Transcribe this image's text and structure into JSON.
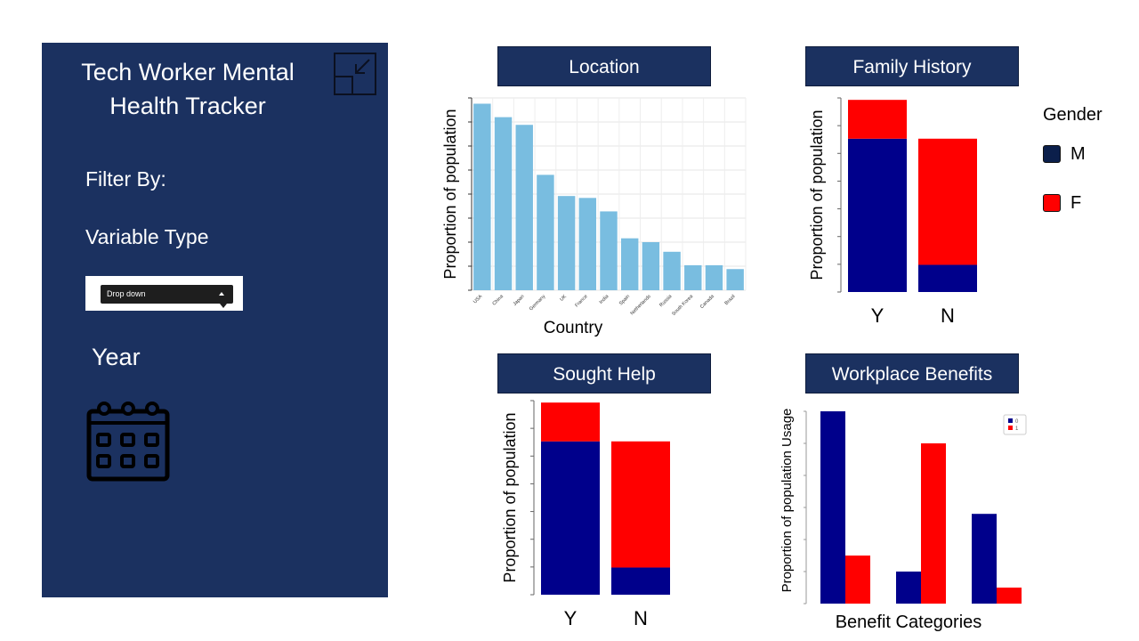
{
  "sidebar": {
    "title": "Tech Worker Mental Health Tracker",
    "filter_label": "Filter By:",
    "variable_type_label": "Variable Type",
    "dropdown_value": "Drop down",
    "year_label": "Year",
    "collapse_icon": "collapse-icon",
    "calendar_icon": "calendar-icon"
  },
  "colors": {
    "sidebar_bg": "#1b3160",
    "male": "#00008b",
    "female": "#ff0000",
    "location_bar": "#79bde0"
  },
  "legend": {
    "title": "Gender",
    "items": [
      {
        "label": "M",
        "color": "#0b1f4b"
      },
      {
        "label": "F",
        "color": "#ff0000"
      }
    ]
  },
  "chart_data": [
    {
      "type": "bar",
      "title": "Location",
      "xlabel": "Country",
      "ylabel": "Proportion of population",
      "categories": [
        "USA",
        "China",
        "Japan",
        "Germany",
        "UK",
        "France",
        "India",
        "Spain",
        "Netherlands",
        "Russia",
        "South Korea",
        "Canada",
        "Brazil"
      ],
      "values": [
        0.97,
        0.9,
        0.86,
        0.6,
        0.49,
        0.48,
        0.41,
        0.27,
        0.25,
        0.2,
        0.13,
        0.13,
        0.11
      ],
      "ylim": [
        0,
        1
      ],
      "grid": true
    },
    {
      "type": "bar",
      "stacked": true,
      "title": "Family History",
      "xlabel": "",
      "ylabel": "Proportion of population",
      "categories": [
        "Y",
        "N"
      ],
      "series": [
        {
          "name": "M",
          "values": [
            0.79,
            0.14
          ]
        },
        {
          "name": "F",
          "values": [
            0.2,
            0.65
          ]
        }
      ],
      "ylim": [
        0,
        1
      ],
      "grid": false
    },
    {
      "type": "bar",
      "stacked": true,
      "title": "Sought Help",
      "xlabel": "",
      "ylabel": "Proportion of population",
      "categories": [
        "Y",
        "N"
      ],
      "series": [
        {
          "name": "M",
          "values": [
            0.79,
            0.14
          ]
        },
        {
          "name": "F",
          "values": [
            0.2,
            0.65
          ]
        }
      ],
      "ylim": [
        0,
        1
      ],
      "grid": false
    },
    {
      "type": "bar",
      "stacked": false,
      "title": "Workplace Benefits",
      "xlabel": "Benefit Categories",
      "ylabel": "Proportion of population Usage",
      "categories": [
        "",
        "",
        ""
      ],
      "series": [
        {
          "name": "0",
          "values": [
            0.6,
            0.1,
            0.28
          ]
        },
        {
          "name": "1",
          "values": [
            0.15,
            0.5,
            0.05
          ]
        }
      ],
      "ylim": [
        0,
        0.6
      ],
      "legend_position": "top-right",
      "grid": false
    }
  ]
}
